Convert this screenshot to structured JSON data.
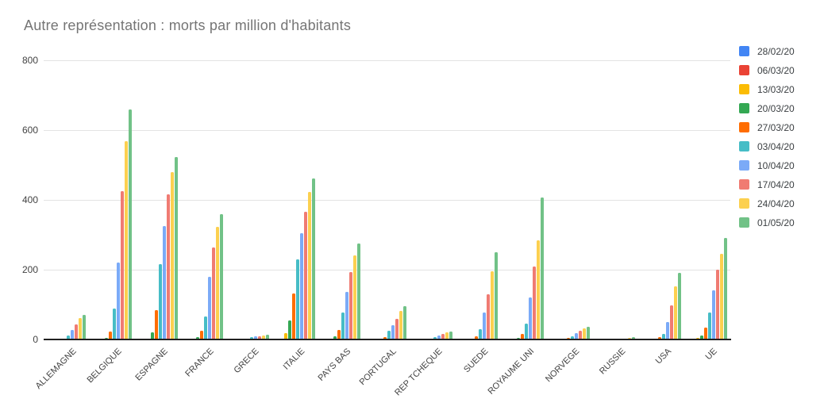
{
  "chart_data": {
    "type": "bar",
    "title": "Autre représentation : morts par million d'habitants",
    "xlabel": "",
    "ylabel": "",
    "ylim": [
      0,
      800
    ],
    "yticks": [
      0,
      200,
      400,
      600,
      800
    ],
    "grid": true,
    "legend_position": "right",
    "categories": [
      "ALLEMAGNE",
      "BELGIQUE",
      "ESPAGNE",
      "FRANCE",
      "GRECE",
      "ITALIE",
      "PAYS BAS",
      "PORTUGAL",
      "REP TCHEQUE",
      "SUEDE",
      "ROYAUME UNI",
      "NORVEGE",
      "RUSSIE",
      "USA",
      "UE"
    ],
    "series": [
      {
        "name": "28/02/20",
        "color": "#4285F4",
        "values": [
          0,
          0,
          0,
          0,
          0,
          0,
          0,
          0,
          0,
          0,
          0,
          0,
          0,
          0,
          0
        ]
      },
      {
        "name": "06/03/20",
        "color": "#EA4335",
        "values": [
          0,
          0,
          0,
          0,
          0,
          3,
          0,
          0,
          0,
          0,
          0,
          0,
          0,
          0,
          1
        ]
      },
      {
        "name": "13/03/20",
        "color": "#FBBC04",
        "values": [
          0,
          1,
          3,
          1,
          0,
          18,
          1,
          0,
          0,
          0,
          0,
          0,
          0,
          0,
          4
        ]
      },
      {
        "name": "20/03/20",
        "color": "#34A853",
        "values": [
          1,
          5,
          21,
          7,
          1,
          55,
          8,
          1,
          0,
          1,
          4,
          1,
          0,
          1,
          11
        ]
      },
      {
        "name": "27/03/20",
        "color": "#FF6D01",
        "values": [
          3,
          22,
          85,
          25,
          3,
          132,
          28,
          7,
          2,
          9,
          17,
          4,
          0,
          6,
          34
        ]
      },
      {
        "name": "03/04/20",
        "color": "#46BDC6",
        "values": [
          11,
          88,
          215,
          65,
          6,
          230,
          78,
          24,
          6,
          30,
          45,
          9,
          0,
          17,
          78
        ]
      },
      {
        "name": "10/04/20",
        "color": "#7BAAF7",
        "values": [
          28,
          220,
          325,
          180,
          9,
          305,
          137,
          42,
          11,
          78,
          120,
          18,
          1,
          50,
          140
        ]
      },
      {
        "name": "17/04/20",
        "color": "#F07B72",
        "values": [
          44,
          424,
          415,
          263,
          10,
          367,
          193,
          60,
          17,
          130,
          210,
          25,
          2,
          98,
          201
        ]
      },
      {
        "name": "24/04/20",
        "color": "#FCD04F",
        "values": [
          61,
          568,
          480,
          322,
          12,
          423,
          242,
          81,
          20,
          196,
          285,
          31,
          5,
          153,
          246
        ]
      },
      {
        "name": "01/05/20",
        "color": "#71C287",
        "values": [
          71,
          660,
          523,
          360,
          13,
          461,
          276,
          96,
          23,
          250,
          406,
          36,
          7,
          192,
          292
        ]
      }
    ]
  }
}
